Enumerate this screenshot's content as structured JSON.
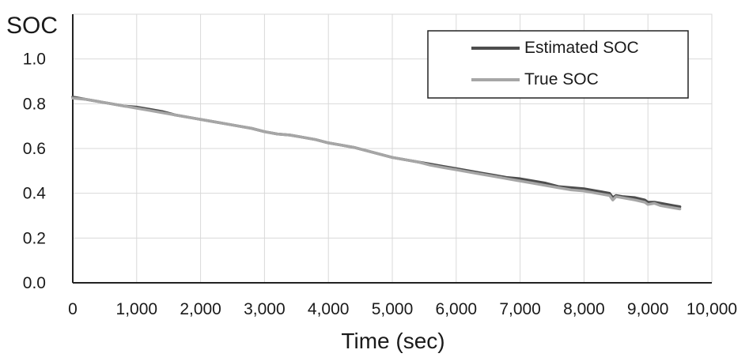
{
  "chart_data": {
    "type": "line",
    "title": "",
    "ylabel": "SOC",
    "xlabel": "Time (sec)",
    "xlim": [
      0,
      10000
    ],
    "ylim": [
      0.0,
      1.2
    ],
    "x_ticks": [
      0,
      1000,
      2000,
      3000,
      4000,
      5000,
      6000,
      7000,
      8000,
      9000,
      10000
    ],
    "x_tick_labels": [
      "0",
      "1,000",
      "2,000",
      "3,000",
      "4,000",
      "5,000",
      "6,000",
      "7,000",
      "8,000",
      "9,000",
      "10,000"
    ],
    "y_ticks": [
      0.0,
      0.2,
      0.4,
      0.6,
      0.8,
      1.0
    ],
    "y_tick_labels": [
      "0.0",
      "0.2",
      "0.4",
      "0.6",
      "0.8",
      "1.0"
    ],
    "grid": true,
    "legend_position": "top-right",
    "series": [
      {
        "name": "Estimated SOC",
        "color": "#4d4d4d",
        "x": [
          0,
          200,
          400,
          600,
          800,
          1000,
          1200,
          1400,
          1600,
          1800,
          2000,
          2200,
          2400,
          2600,
          2800,
          3000,
          3200,
          3400,
          3600,
          3800,
          4000,
          4200,
          4400,
          4600,
          4800,
          5000,
          5200,
          5400,
          5600,
          5800,
          6000,
          6200,
          6400,
          6600,
          6800,
          7000,
          7200,
          7400,
          7600,
          7800,
          8000,
          8200,
          8400,
          8450,
          8500,
          8600,
          8800,
          8950,
          9000,
          9100,
          9200,
          9400,
          9500
        ],
        "y": [
          0.83,
          0.82,
          0.81,
          0.8,
          0.79,
          0.785,
          0.775,
          0.765,
          0.75,
          0.74,
          0.73,
          0.72,
          0.71,
          0.7,
          0.69,
          0.675,
          0.665,
          0.66,
          0.65,
          0.64,
          0.625,
          0.615,
          0.605,
          0.59,
          0.575,
          0.56,
          0.55,
          0.54,
          0.53,
          0.52,
          0.51,
          0.5,
          0.49,
          0.48,
          0.47,
          0.465,
          0.455,
          0.445,
          0.43,
          0.425,
          0.42,
          0.41,
          0.4,
          0.38,
          0.39,
          0.385,
          0.38,
          0.37,
          0.36,
          0.36,
          0.355,
          0.345,
          0.34
        ]
      },
      {
        "name": "True SOC",
        "color": "#a6a6a6",
        "x": [
          0,
          200,
          400,
          600,
          800,
          1000,
          1200,
          1400,
          1600,
          1800,
          2000,
          2200,
          2400,
          2600,
          2800,
          3000,
          3200,
          3400,
          3600,
          3800,
          4000,
          4200,
          4400,
          4600,
          4800,
          5000,
          5200,
          5400,
          5600,
          5800,
          6000,
          6200,
          6400,
          6600,
          6800,
          7000,
          7200,
          7400,
          7600,
          7800,
          8000,
          8200,
          8400,
          8450,
          8500,
          8600,
          8800,
          8950,
          9000,
          9100,
          9200,
          9400,
          9500
        ],
        "y": [
          0.825,
          0.82,
          0.81,
          0.8,
          0.79,
          0.78,
          0.77,
          0.76,
          0.75,
          0.74,
          0.73,
          0.72,
          0.71,
          0.7,
          0.69,
          0.675,
          0.665,
          0.66,
          0.65,
          0.64,
          0.625,
          0.615,
          0.605,
          0.59,
          0.575,
          0.56,
          0.55,
          0.54,
          0.525,
          0.515,
          0.505,
          0.495,
          0.485,
          0.475,
          0.465,
          0.455,
          0.445,
          0.435,
          0.425,
          0.415,
          0.41,
          0.4,
          0.39,
          0.37,
          0.385,
          0.38,
          0.37,
          0.36,
          0.35,
          0.355,
          0.345,
          0.335,
          0.33
        ]
      }
    ]
  }
}
